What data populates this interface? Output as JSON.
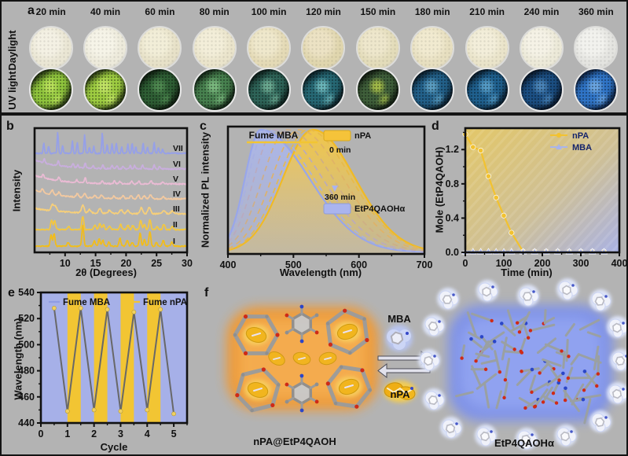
{
  "figure": {
    "bg": "#b3b3b3",
    "border": "#141414"
  },
  "panel_a": {
    "label": "a",
    "row_labels": [
      "Daylight",
      "UV light"
    ],
    "times": [
      "20 min",
      "40 min",
      "60 min",
      "80 min",
      "100 min",
      "120 min",
      "150 min",
      "180 min",
      "210 min",
      "240 min",
      "360 min"
    ],
    "daylight": [
      {
        "base": "#eae6d4",
        "light": "#f4f1e4",
        "rim": "#c6c6c2"
      },
      {
        "base": "#edeadb",
        "light": "#f6f4e8",
        "rim": "#c8c8c4"
      },
      {
        "base": "#e7e1c8",
        "light": "#f2eed8",
        "rim": "#c6c4be"
      },
      {
        "base": "#eae4cb",
        "light": "#f3eed9",
        "rim": "#c6c4be"
      },
      {
        "base": "#e4dab6",
        "light": "#efe8cc",
        "rim": "#c4c0b6"
      },
      {
        "base": "#e0d6ae",
        "light": "#ece2c4",
        "rim": "#c2beb4"
      },
      {
        "base": "#e3dcba",
        "light": "#eee7cc",
        "rim": "#c4c0b8"
      },
      {
        "base": "#e7dfc0",
        "light": "#f1ead0",
        "rim": "#c6c2ba"
      },
      {
        "base": "#eae4ca",
        "light": "#f3eeda",
        "rim": "#c6c4bc"
      },
      {
        "base": "#ece9d8",
        "light": "#f5f2e6",
        "rim": "#c8c8c2"
      },
      {
        "base": "#e4e4e0",
        "light": "#f2f2ee",
        "rim": "#c8c8c6"
      }
    ],
    "uv": [
      {
        "main": "#8fc43d",
        "accent": "#b8e05a",
        "dark": "#10180a"
      },
      {
        "main": "#9dcc41",
        "accent": "#c2e466",
        "dark": "#121a0a"
      },
      {
        "main": "#2e5e34",
        "accent": "#4e8850",
        "dark": "#0a120a"
      },
      {
        "main": "#47804e",
        "accent": "#7ab87e",
        "dark": "#0a140c"
      },
      {
        "main": "#2e6458",
        "accent": "#6aa890",
        "dark": "#081210"
      },
      {
        "main": "#266874",
        "accent": "#6ab4b8",
        "dark": "#081216"
      },
      {
        "main": "#3f5f3a",
        "accent": "#a0b848",
        "dark": "#0a100a"
      },
      {
        "main": "#226089",
        "accent": "#5a9cc0",
        "dark": "#071018"
      },
      {
        "main": "#1f608e",
        "accent": "#549ac4",
        "dark": "#06101a"
      },
      {
        "main": "#1b4e82",
        "accent": "#4a84b8",
        "dark": "#060e1a"
      },
      {
        "main": "#2f74c6",
        "accent": "#6aa4e0",
        "dark": "#081226"
      }
    ]
  },
  "chart_data": [
    {
      "id": "b",
      "panel_label": "b",
      "type": "line",
      "xlabel": "2θ (Degrees)",
      "ylabel": "Intensity",
      "xrange": [
        5,
        30
      ],
      "xticks": [
        10,
        15,
        20,
        25,
        30
      ],
      "xtick_labels": [
        "10",
        "15",
        "20",
        "25",
        "30"
      ],
      "xminor": [
        7.5,
        12.5,
        17.5,
        22.5,
        27.5
      ],
      "note": "stacked powder XRD patterns, traces I (bottom) to VII (top), peak positions in degrees 2-theta with relative heights",
      "series": [
        {
          "name": "I",
          "color": "#f2bc1b",
          "base": 162,
          "amp": 26,
          "pw": 0.15,
          "shadow": true,
          "peaks": [
            [
              7.7,
              0.55
            ],
            [
              8.2,
              0.6
            ],
            [
              10.5,
              0.18
            ],
            [
              12.9,
              1.0
            ],
            [
              14.8,
              0.25
            ],
            [
              15.6,
              0.35
            ],
            [
              16.2,
              0.3
            ],
            [
              17.2,
              0.2
            ],
            [
              19.0,
              0.38
            ],
            [
              20.2,
              0.3
            ],
            [
              21.0,
              0.2
            ],
            [
              22.3,
              0.62
            ],
            [
              23.0,
              0.3
            ],
            [
              23.9,
              0.7
            ],
            [
              25.0,
              0.18
            ],
            [
              26.1,
              0.3
            ],
            [
              27.5,
              0.2
            ]
          ]
        },
        {
          "name": "II",
          "color": "#f4c63f",
          "base": 141,
          "amp": 20,
          "pw": 0.16,
          "shadow": true,
          "peaks": [
            [
              7.8,
              0.6
            ],
            [
              8.3,
              0.55
            ],
            [
              10.6,
              0.2
            ],
            [
              12.9,
              0.85
            ],
            [
              14.9,
              0.3
            ],
            [
              15.7,
              0.4
            ],
            [
              16.3,
              0.3
            ],
            [
              17.3,
              0.25
            ],
            [
              19.1,
              0.35
            ],
            [
              20.3,
              0.3
            ],
            [
              21.1,
              0.25
            ],
            [
              22.4,
              0.6
            ],
            [
              23.0,
              0.3
            ],
            [
              23.9,
              0.65
            ],
            [
              25.1,
              0.2
            ],
            [
              26.2,
              0.35
            ],
            [
              27.6,
              0.2
            ]
          ]
        },
        {
          "name": "III",
          "color": "#f6cf7a",
          "base": 121,
          "amp": 14,
          "pw": 0.22,
          "decay": [
            0.5,
            5
          ],
          "peaks": [
            [
              7.9,
              0.55
            ],
            [
              8.4,
              0.45
            ],
            [
              12.9,
              0.7
            ],
            [
              14.0,
              0.3
            ],
            [
              15.7,
              0.4
            ],
            [
              17.3,
              0.3
            ],
            [
              19.2,
              0.35
            ],
            [
              20.3,
              0.3
            ],
            [
              22.5,
              0.55
            ],
            [
              23.8,
              0.6
            ],
            [
              26.2,
              0.3
            ],
            [
              27.6,
              0.25
            ]
          ]
        },
        {
          "name": "IV",
          "color": "#f3c9a0",
          "base": 102,
          "amp": 11,
          "pw": 0.18,
          "decay": [
            1.0,
            4.5
          ],
          "peaks": [
            [
              6.3,
              0.4
            ],
            [
              7.9,
              0.5
            ],
            [
              9.0,
              0.35
            ],
            [
              12.0,
              0.4
            ],
            [
              13.2,
              0.5
            ],
            [
              14.9,
              0.3
            ],
            [
              16.0,
              0.35
            ],
            [
              18.0,
              0.3
            ],
            [
              19.5,
              0.35
            ],
            [
              20.8,
              0.3
            ],
            [
              22.0,
              0.4
            ],
            [
              23.0,
              0.35
            ],
            [
              24.0,
              0.45
            ],
            [
              26.1,
              0.25
            ]
          ]
        },
        {
          "name": "V",
          "color": "#eabbd4",
          "base": 83,
          "amp": 11,
          "pw": 0.14,
          "decay": [
            1.0,
            4
          ],
          "peaks": [
            [
              6.4,
              0.35
            ],
            [
              9.0,
              0.4
            ],
            [
              11.9,
              0.3
            ],
            [
              13.3,
              0.6
            ],
            [
              16.1,
              0.35
            ],
            [
              18.1,
              0.3
            ],
            [
              19.0,
              0.25
            ],
            [
              20.9,
              0.3
            ],
            [
              22.1,
              0.35
            ],
            [
              24.1,
              0.4
            ],
            [
              26.0,
              0.2
            ]
          ]
        },
        {
          "name": "VI",
          "color": "#c9aede",
          "base": 64,
          "amp": 13,
          "pw": 0.12,
          "decay": [
            0.9,
            4
          ],
          "peaks": [
            [
              6.6,
              0.4
            ],
            [
              8.9,
              0.5
            ],
            [
              11.3,
              0.35
            ],
            [
              12.1,
              0.3
            ],
            [
              13.3,
              0.45
            ],
            [
              14.6,
              0.25
            ],
            [
              16.2,
              0.4
            ],
            [
              17.7,
              0.3
            ],
            [
              18.5,
              0.3
            ],
            [
              19.5,
              0.25
            ],
            [
              20.7,
              0.3
            ],
            [
              21.4,
              0.35
            ],
            [
              22.7,
              0.35
            ],
            [
              24.6,
              0.4
            ],
            [
              25.5,
              0.25
            ]
          ]
        },
        {
          "name": "VII",
          "color": "#96a0e8",
          "base": 44,
          "amp": 26,
          "pw": 0.1,
          "peaks": [
            [
              6.5,
              0.5
            ],
            [
              7.3,
              0.35
            ],
            [
              8.8,
              1.0
            ],
            [
              9.6,
              0.4
            ],
            [
              11.2,
              0.6
            ],
            [
              12.0,
              0.55
            ],
            [
              13.2,
              0.9
            ],
            [
              14.0,
              0.3
            ],
            [
              14.7,
              0.35
            ],
            [
              16.1,
              1.0
            ],
            [
              16.9,
              0.4
            ],
            [
              17.7,
              0.45
            ],
            [
              18.4,
              0.5
            ],
            [
              19.3,
              0.3
            ],
            [
              20.3,
              0.45
            ],
            [
              21.0,
              0.5
            ],
            [
              21.6,
              0.35
            ],
            [
              22.8,
              0.5
            ],
            [
              23.5,
              0.3
            ],
            [
              24.6,
              0.55
            ],
            [
              25.3,
              0.3
            ],
            [
              26.0,
              0.2
            ]
          ]
        }
      ]
    },
    {
      "id": "c",
      "panel_label": "c",
      "type": "area",
      "xlabel": "Wavelength (nm)",
      "ylabel": "Normalized PL intensity",
      "xrange": [
        400,
        700
      ],
      "xticks": [
        400,
        500,
        600,
        700
      ],
      "xtick_labels": [
        "400",
        "500",
        "600",
        "700"
      ],
      "xminor": [
        450,
        550,
        650
      ],
      "annotation": "Fume MBA",
      "legend": {
        "top_swatch": "nPA",
        "top_color": "#f5c33a",
        "start": "0 min",
        "end": "360 min",
        "bottom_swatch": "EtP4QAOHα",
        "bottom_color": "#aab4ee"
      },
      "note": "PL spectra evolving from nPA-loaded solid (yellow, peak 530 nm) to EtP4QAOHα (blue, peak 450 nm) upon MBA fuming; dashed curves are intermediate times",
      "curves": [
        {
          "name": "EtP4QAOHα",
          "peak": 450,
          "wl": 24,
          "wr": 74,
          "style": "solid",
          "color": "#98a6ea",
          "fill": "#aab6ee"
        },
        {
          "name": "nPA@EtP4QAOH",
          "peak": 530,
          "wl": 46,
          "wr": 64,
          "style": "solid",
          "color": "#f0ba25",
          "fill": "#f6c843"
        },
        {
          "peak": 522,
          "wl": 44,
          "wr": 66,
          "style": "dashed",
          "color": "#e7b94a"
        },
        {
          "peak": 508,
          "wl": 41,
          "wr": 68,
          "style": "dashed",
          "color": "#dfb266"
        },
        {
          "peak": 490,
          "wl": 37,
          "wr": 70,
          "style": "dashed",
          "color": "#cfae85"
        },
        {
          "peak": 472,
          "wl": 32,
          "wr": 72,
          "style": "dashed",
          "color": "#b9aabe"
        },
        {
          "peak": 458,
          "wl": 27,
          "wr": 73,
          "style": "dashed",
          "color": "#a8b0e2"
        }
      ]
    },
    {
      "id": "d",
      "panel_label": "d",
      "type": "scatter-line",
      "xlabel": "Time (min)",
      "ylabel": "Mole (EtP4QAOH)",
      "xrange": [
        0,
        400
      ],
      "xticks": [
        0,
        100,
        200,
        300,
        400
      ],
      "xtick_labels": [
        "0",
        "100",
        "200",
        "300",
        "400"
      ],
      "xminor": [
        50,
        150,
        250,
        350
      ],
      "yrange": [
        0,
        1.45
      ],
      "yticks": [
        0,
        0.4,
        0.8,
        1.2
      ],
      "ytick_labels": [
        "0.0",
        "0.4",
        "0.8",
        "1.2"
      ],
      "yminor": [
        0.2,
        0.6,
        1.0,
        1.4
      ],
      "bg": {
        "from": "#e3c768",
        "mid": "#cfc095",
        "to": "#a9b2e4"
      },
      "legend_text_color": "#15246b",
      "series": [
        {
          "name": "nPA",
          "color": "#f2c230",
          "marker": "circle",
          "x": [
            0,
            20,
            40,
            60,
            80,
            100,
            120,
            150,
            180,
            210,
            240,
            270,
            300,
            330,
            360
          ],
          "y": [
            1.37,
            1.22,
            1.18,
            0.88,
            0.63,
            0.42,
            0.22,
            0,
            0,
            0,
            0,
            0,
            0,
            0,
            0
          ]
        },
        {
          "name": "MBA",
          "color": "#a9b4ea",
          "marker": "triangle",
          "x": [
            0,
            20,
            40,
            60,
            80,
            100,
            120,
            150,
            180,
            210,
            240,
            270,
            300,
            330,
            360
          ],
          "y": [
            0,
            0,
            0,
            0,
            0,
            0,
            0,
            0,
            0,
            0,
            0,
            0,
            0,
            0,
            0
          ]
        }
      ]
    },
    {
      "id": "e",
      "panel_label": "e",
      "type": "line",
      "xlabel": "Cycle",
      "ylabel": "Wavelength (nm)",
      "xrange": [
        0,
        5.5
      ],
      "xticks": [
        0,
        1,
        2,
        3,
        4,
        5
      ],
      "xtick_labels": [
        "0",
        "1",
        "2",
        "3",
        "4",
        "5"
      ],
      "xminor": [
        0.5,
        1.5,
        2.5,
        3.5,
        4.5,
        5.5
      ],
      "yrange": [
        440,
        540
      ],
      "yticks": [
        440,
        460,
        480,
        500,
        520,
        540
      ],
      "ytick_labels": [
        "440",
        "460",
        "480",
        "500",
        "520",
        "540"
      ],
      "yminor": [
        450,
        470,
        490,
        510,
        530
      ],
      "bg": "#a6b0e8",
      "band_color": "#f2c533",
      "bands": [
        [
          1,
          1.5
        ],
        [
          2,
          2.5
        ],
        [
          3,
          3.5
        ],
        [
          4,
          4.5
        ]
      ],
      "legend": [
        {
          "label": "Fume MBA",
          "color": "#8f9ce4"
        },
        {
          "label": "Fume nPA",
          "color": "#f2c533"
        }
      ],
      "line": {
        "color": "#686868",
        "marker_color": "#f0d060",
        "x": [
          0.5,
          1,
          1.5,
          2,
          2.5,
          3,
          3.5,
          4,
          4.5,
          5
        ],
        "y": [
          528,
          449,
          528,
          450,
          527,
          449,
          525,
          450,
          527,
          447
        ]
      }
    }
  ],
  "panel_f": {
    "label": "f",
    "mba_label": "MBA",
    "npa_label": "nPA",
    "left_label": "nPA@EtP4QAOH",
    "right_label": "EtP4QAOHα",
    "left_glow_color": "#f09a34",
    "right_glow_color": "#7e92ea",
    "guest_color": "#f1b51e"
  }
}
